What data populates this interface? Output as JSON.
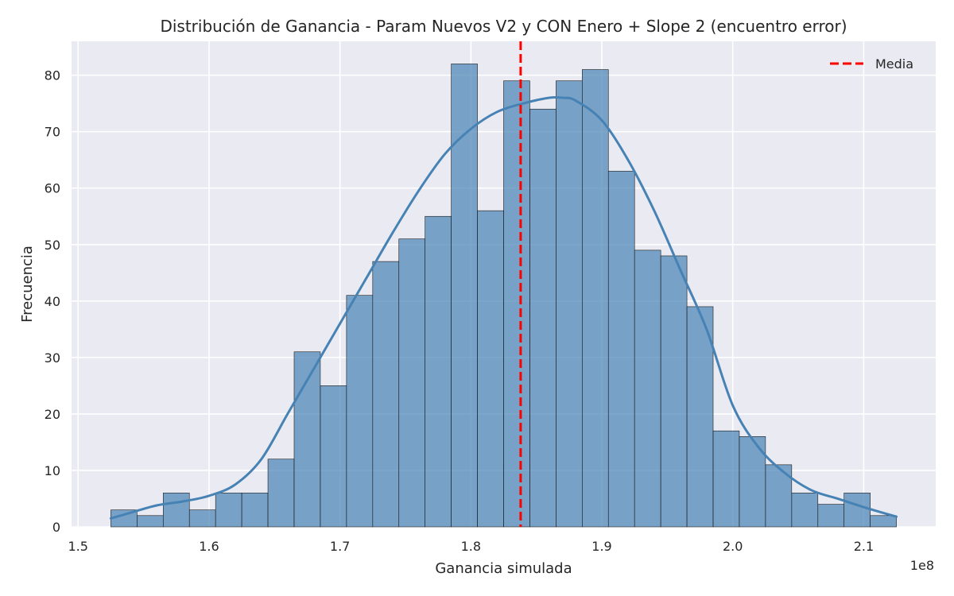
{
  "chart_data": {
    "type": "bar",
    "title": "Distribución de Ganancia - Param Nuevos V2 y CON Enero + Slope 2 (encuentro error)",
    "xlabel": "Ganancia simulada",
    "ylabel": "Frecuencia",
    "x_offset_text": "1e8",
    "xlim": [
      1.495,
      2.155
    ],
    "ylim": [
      0,
      86
    ],
    "x_ticks": [
      1.5,
      1.6,
      1.7,
      1.8,
      1.9,
      2.0,
      2.1
    ],
    "x_tick_labels": [
      "1.5",
      "1.6",
      "1.7",
      "1.8",
      "1.9",
      "2.0",
      "2.1"
    ],
    "y_ticks": [
      0,
      10,
      20,
      30,
      40,
      50,
      60,
      70,
      80
    ],
    "y_tick_labels": [
      "0",
      "10",
      "20",
      "30",
      "40",
      "50",
      "60",
      "70",
      "80"
    ],
    "bin_start": 1.525,
    "bin_width": 0.02,
    "values": [
      3,
      2,
      6,
      3,
      6,
      6,
      12,
      31,
      25,
      41,
      47,
      51,
      55,
      82,
      56,
      79,
      74,
      79,
      81,
      63,
      49,
      48,
      39,
      17,
      16,
      11,
      6,
      4,
      6,
      2
    ],
    "kde": {
      "x": [
        1.525,
        1.54,
        1.56,
        1.58,
        1.6,
        1.62,
        1.64,
        1.66,
        1.68,
        1.7,
        1.72,
        1.74,
        1.76,
        1.78,
        1.8,
        1.82,
        1.84,
        1.86,
        1.87,
        1.88,
        1.9,
        1.92,
        1.94,
        1.96,
        1.98,
        2.0,
        2.02,
        2.04,
        2.06,
        2.08,
        2.1,
        2.125
      ],
      "y": [
        1.5,
        2.5,
        3.8,
        4.5,
        5.5,
        7.5,
        12,
        20,
        28,
        36,
        44,
        52,
        59.5,
        66,
        70.5,
        73.5,
        75,
        76,
        76,
        75.5,
        72,
        65,
        56,
        45.5,
        35,
        21.5,
        14,
        9.5,
        6.5,
        5,
        3.5,
        1.8
      ]
    },
    "mean": 1.838,
    "legend": {
      "entries": [
        "Media"
      ],
      "position": "top-right"
    },
    "grid": true,
    "colors": {
      "background": "#eaeaf2",
      "grid": "#ffffff",
      "bar_fill": "#4682b4",
      "bar_edge": "#1a1a1a",
      "kde_line": "#4682b4",
      "mean_line": "#ff0000"
    }
  }
}
